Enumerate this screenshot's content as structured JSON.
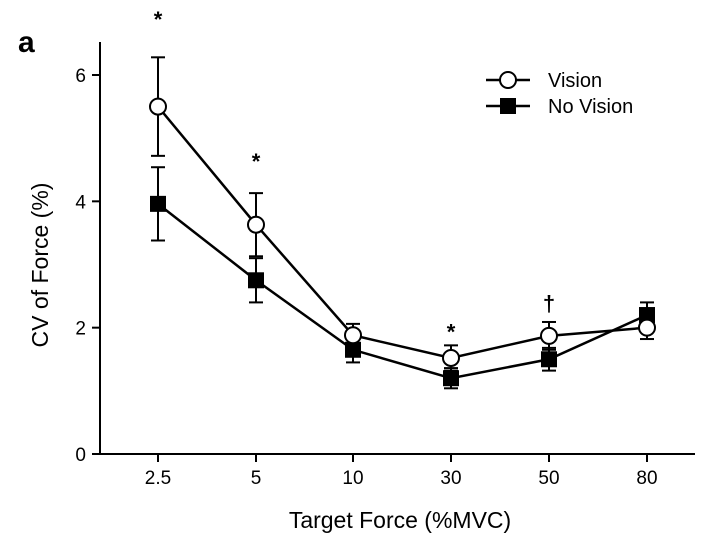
{
  "chart_data": {
    "type": "line",
    "panel_label": "a",
    "xlabel": "Target Force (%MVC)",
    "ylabel": "CV of Force (%)",
    "categories": [
      "2.5",
      "5",
      "10",
      "30",
      "50",
      "80"
    ],
    "ylim": [
      0,
      6.6
    ],
    "yticks": [
      0,
      2,
      4,
      6
    ],
    "grid": false,
    "legend_position": "top-right",
    "series": [
      {
        "name": "Vision",
        "marker": "open-circle",
        "values": [
          5.5,
          3.63,
          1.88,
          1.52,
          1.87,
          2.0
        ],
        "err_upper": [
          0.78,
          0.5,
          0.18,
          0.2,
          0.22,
          0.18
        ],
        "err_lower": [
          0.78,
          0.5,
          0.18,
          0.2,
          0.22,
          0.18
        ]
      },
      {
        "name": "No Vision",
        "marker": "filled-square",
        "values": [
          3.96,
          2.75,
          1.65,
          1.2,
          1.5,
          2.2
        ],
        "err_upper": [
          0.58,
          0.35,
          0.2,
          0.16,
          0.18,
          0.2
        ],
        "err_lower": [
          0.58,
          0.35,
          0.2,
          0.16,
          0.18,
          0.2
        ]
      }
    ],
    "annotations": [
      {
        "category": "2.5",
        "text": "*",
        "y": 6.95
      },
      {
        "category": "5",
        "text": "*",
        "y": 4.7
      },
      {
        "category": "30",
        "text": "*",
        "y": 2.0
      },
      {
        "category": "50",
        "text": "†",
        "y": 2.45
      }
    ]
  }
}
